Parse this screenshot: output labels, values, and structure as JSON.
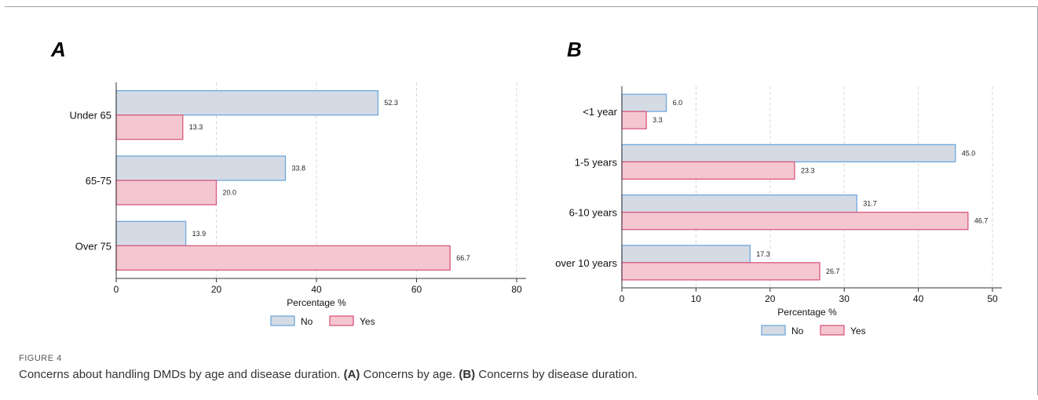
{
  "caption": {
    "figure_label": "FIGURE 4",
    "text_intro": "Concerns about handling DMDs by age and disease duration.",
    "a_tag": "(A)",
    "a_text": "Concerns by age.",
    "b_tag": "(B)",
    "b_text": "Concerns by disease duration."
  },
  "chart_data": [
    {
      "panel": "A",
      "type": "bar",
      "orientation": "horizontal",
      "categories": [
        "Under 65",
        "65-75",
        "Over 75"
      ],
      "series": [
        {
          "name": "No",
          "values": [
            52.3,
            33.8,
            13.9
          ],
          "fill": "#d5dbe4",
          "stroke": "#6fa8dc"
        },
        {
          "name": "Yes",
          "values": [
            13.3,
            20.0,
            66.7
          ],
          "fill": "#f4c7d0",
          "stroke": "#d9587e"
        }
      ],
      "xlabel": "Percentage %",
      "xlim": [
        0,
        80
      ],
      "xticks": [
        0,
        20,
        40,
        60,
        80
      ],
      "grid": true,
      "legend": "bottom"
    },
    {
      "panel": "B",
      "type": "bar",
      "orientation": "horizontal",
      "categories": [
        "<1 year",
        "1-5 years",
        "6-10 years",
        "over 10 years"
      ],
      "series": [
        {
          "name": "No",
          "values": [
            6.0,
            45.0,
            31.7,
            17.3
          ],
          "fill": "#d5dbe4",
          "stroke": "#6fa8dc"
        },
        {
          "name": "Yes",
          "values": [
            3.3,
            23.3,
            46.7,
            26.7
          ],
          "fill": "#f4c7d0",
          "stroke": "#d9587e"
        }
      ],
      "xlabel": "Percentage %",
      "xlim": [
        0,
        50
      ],
      "xticks": [
        0,
        10,
        20,
        30,
        40,
        50
      ],
      "grid": true,
      "legend": "bottom"
    }
  ]
}
